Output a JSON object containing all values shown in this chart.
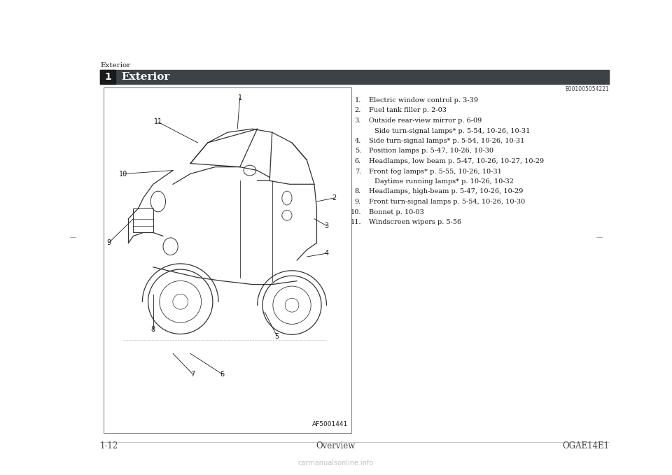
{
  "page_title": "Exterior",
  "section_number": "1",
  "section_title": "Exterior",
  "code_top_right": "E001005054221",
  "image_code": "AF5001441",
  "bottom_left": "1-12",
  "bottom_center": "Overview",
  "bottom_right": "OGAE14E1",
  "items": [
    [
      "1.",
      "Electric window control p. 3-39"
    ],
    [
      "2.",
      "Fuel tank filler p. 2-03"
    ],
    [
      "3.",
      "Outside rear-view mirror p. 6-09"
    ],
    [
      "",
      "Side turn-signal lamps* p. 5-54, 10-26, 10-31"
    ],
    [
      "4.",
      "Side turn-signal lamps* p. 5-54, 10-26, 10-31"
    ],
    [
      "5.",
      "Position lamps p. 5-47, 10-26, 10-30"
    ],
    [
      "6.",
      "Headlamps, low beam p. 5-47, 10-26, 10-27, 10-29"
    ],
    [
      "7.",
      "Front fog lamps* p. 5-55, 10-26, 10-31"
    ],
    [
      "",
      "Daytime running lamps* p. 10-26, 10-32"
    ],
    [
      "8.",
      "Headlamps, high-beam p. 5-47, 10-26, 10-29"
    ],
    [
      "9.",
      "Front turn-signal lamps p. 5-54, 10-26, 10-30"
    ],
    [
      "10.",
      "Bonnet p. 10-03"
    ],
    [
      "11.",
      "Windscreen wipers p. 5-56"
    ]
  ],
  "callout_labels": [
    "1",
    "2",
    "3",
    "4",
    "5",
    "6",
    "7",
    "8",
    "9",
    "10",
    "11"
  ],
  "bg_color": "#ffffff",
  "header_bg": "#3c4245",
  "header_text_color": "#ffffff",
  "section_num_bg": "#1a1a1a",
  "border_color": "#888888",
  "thin_line_color": "#999999",
  "text_color": "#1a1a1a",
  "footer_text_color": "#444444",
  "car_line_color": "#333333",
  "car_bg": "#ffffff"
}
